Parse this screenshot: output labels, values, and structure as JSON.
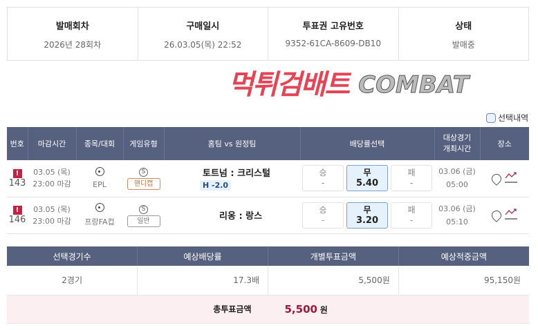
{
  "info": [
    {
      "label": "발매회차",
      "value": "2026년 28회차"
    },
    {
      "label": "구매일시",
      "value": "26.03.05(목) 22:52"
    },
    {
      "label": "투표권 고유번호",
      "value": "9352-61CA-8609-DB10"
    },
    {
      "label": "상태",
      "value": "발매중"
    }
  ],
  "select_label": "선택내역",
  "headers": [
    "번호",
    "마감시간",
    "종목/대회",
    "게임유형",
    "홈팀 vs 원정팀",
    "배당률선택",
    "대상경기\n개최시간",
    "장소"
  ],
  "rows": [
    {
      "no": "143",
      "date": "03.05 (목)",
      "close": "23:00 마감",
      "league": "EPL",
      "game_icon": "S",
      "game_type": "핸디캡",
      "teams": "토트넘 : 크리스털",
      "handicap": "H -2.0",
      "odds": [
        {
          "label": "승",
          "value": "-"
        },
        {
          "label": "무",
          "value": "5.40",
          "selected": true
        },
        {
          "label": "패",
          "value": "-"
        }
      ],
      "match_date": "03.06 (금)",
      "match_time": "05:00"
    },
    {
      "no": "146",
      "date": "03.05 (목)",
      "close": "23:00 마감",
      "league": "프랑FA컵",
      "game_icon": "S",
      "game_type": "일반",
      "teams": "리옹 : 랑스",
      "handicap": "",
      "odds": [
        {
          "label": "승",
          "value": "-"
        },
        {
          "label": "무",
          "value": "3.20",
          "selected": true
        },
        {
          "label": "패",
          "value": "-"
        }
      ],
      "match_date": "03.06 (금)",
      "match_time": "05:10"
    }
  ],
  "summary": {
    "headers": [
      "선택경기수",
      "예상배당률",
      "개별투표금액",
      "예상적중금액"
    ],
    "values": [
      "2경기",
      "17.3배",
      "5,500원",
      "95,150원"
    ],
    "total_label": "총투표금액",
    "total_value": "5,500",
    "total_unit": "원"
  },
  "watermark": {
    "korean": "먹튀검배트",
    "english": "COMBAT"
  },
  "colors": {
    "header_bg": "#56607f",
    "alert": "#c8203f",
    "total_value": "#a0173a",
    "total_bg": "#fbeff1",
    "selected_odds": "#e5f1fb"
  }
}
